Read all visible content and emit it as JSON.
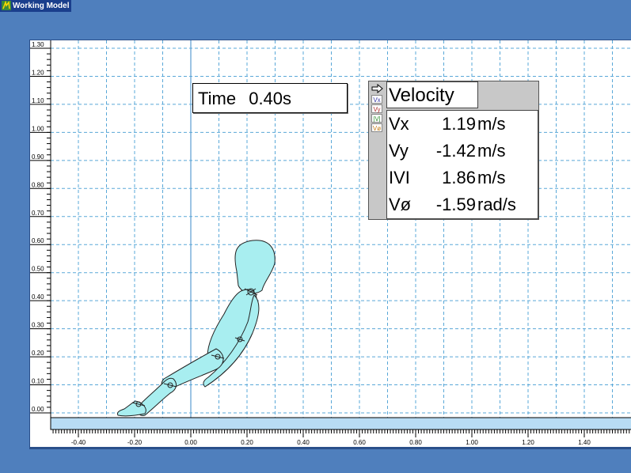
{
  "app": {
    "title": "Working Model"
  },
  "time_display": {
    "label": "Time",
    "value": "0.40",
    "unit": "s"
  },
  "velocity_meter": {
    "title": "Velocity",
    "swatches": [
      {
        "label": "Vx",
        "color": "#3a3aa8"
      },
      {
        "label": "Vy",
        "color": "#b03030"
      },
      {
        "label": "|V|",
        "color": "#2f8f2f"
      },
      {
        "label": "Vø",
        "color": "#c07a10"
      }
    ],
    "rows": [
      {
        "label": "Vx",
        "value": "1.19",
        "unit": "m/s"
      },
      {
        "label": "Vy",
        "value": "-1.42",
        "unit": "m/s"
      },
      {
        "label": "IVI",
        "value": "1.86",
        "unit": "m/s"
      },
      {
        "label": "Vø",
        "value": "-1.59",
        "unit": "rad/s"
      }
    ]
  },
  "rulers": {
    "y_labels": [
      "1.30",
      "1.20",
      "1.10",
      "1.00",
      "0.90",
      "0.80",
      "0.70",
      "0.60",
      "0.50",
      "0.40",
      "0.30",
      "0.20",
      "0.10",
      "0.00"
    ],
    "x_labels": [
      "-0.40",
      "-0.20",
      "0.00",
      "0.20",
      "0.40",
      "0.60",
      "0.80",
      "1.00",
      "1.20",
      "1.40"
    ]
  },
  "colors": {
    "background": "#4f7fbd",
    "grid": "#5aa8d8",
    "body": "#a8eef0",
    "ground": "#b8dcf4"
  }
}
